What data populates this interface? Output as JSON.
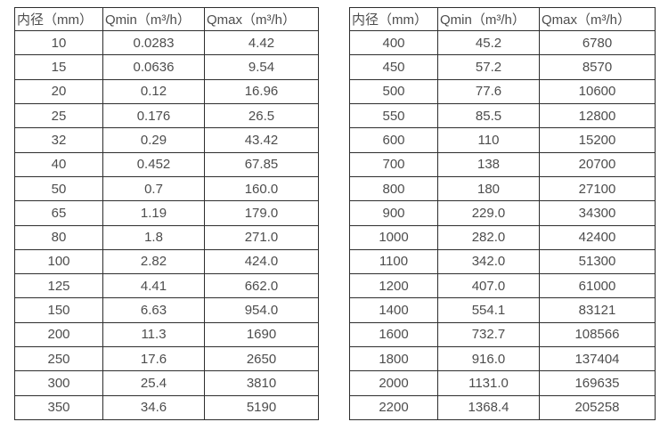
{
  "page": {
    "background_color": "#ffffff",
    "border_color": "#2e2e2e",
    "text_color": "#4d4d4d"
  },
  "tables": [
    {
      "name": "small-diameter-flow-table",
      "headers": [
        "内径（mm）",
        "Qmin（m³/h）",
        "Qmax（m³/h）"
      ],
      "rows": [
        [
          "10",
          "0.0283",
          "4.42"
        ],
        [
          "15",
          "0.0636",
          "9.54"
        ],
        [
          "20",
          "0.12",
          "16.96"
        ],
        [
          "25",
          "0.176",
          "26.5"
        ],
        [
          "32",
          "0.29",
          "43.42"
        ],
        [
          "40",
          "0.452",
          "67.85"
        ],
        [
          "50",
          "0.7",
          "160.0"
        ],
        [
          "65",
          "1.19",
          "179.0"
        ],
        [
          "80",
          "1.8",
          "271.0"
        ],
        [
          "100",
          "2.82",
          "424.0"
        ],
        [
          "125",
          "4.41",
          "662.0"
        ],
        [
          "150",
          "6.63",
          "954.0"
        ],
        [
          "200",
          "11.3",
          "1690"
        ],
        [
          "250",
          "17.6",
          "2650"
        ],
        [
          "300",
          "25.4",
          "3810"
        ],
        [
          "350",
          "34.6",
          "5190"
        ]
      ]
    },
    {
      "name": "large-diameter-flow-table",
      "headers": [
        "内径（mm）",
        "Qmin（m³/h）",
        "Qmax（m³/h）"
      ],
      "rows": [
        [
          "400",
          "45.2",
          "6780"
        ],
        [
          "450",
          "57.2",
          "8570"
        ],
        [
          "500",
          "77.6",
          "10600"
        ],
        [
          "550",
          "85.5",
          "12800"
        ],
        [
          "600",
          "110",
          "15200"
        ],
        [
          "700",
          "138",
          "20700"
        ],
        [
          "800",
          "180",
          "27100"
        ],
        [
          "900",
          "229.0",
          "34300"
        ],
        [
          "1000",
          "282.0",
          "42400"
        ],
        [
          "1100",
          "342.0",
          "51300"
        ],
        [
          "1200",
          "407.0",
          "61000"
        ],
        [
          "1400",
          "554.1",
          "83121"
        ],
        [
          "1600",
          "732.7",
          "108566"
        ],
        [
          "1800",
          "916.0",
          "137404"
        ],
        [
          "2000",
          "1131.0",
          "169635"
        ],
        [
          "2200",
          "1368.4",
          "205258"
        ]
      ]
    }
  ]
}
